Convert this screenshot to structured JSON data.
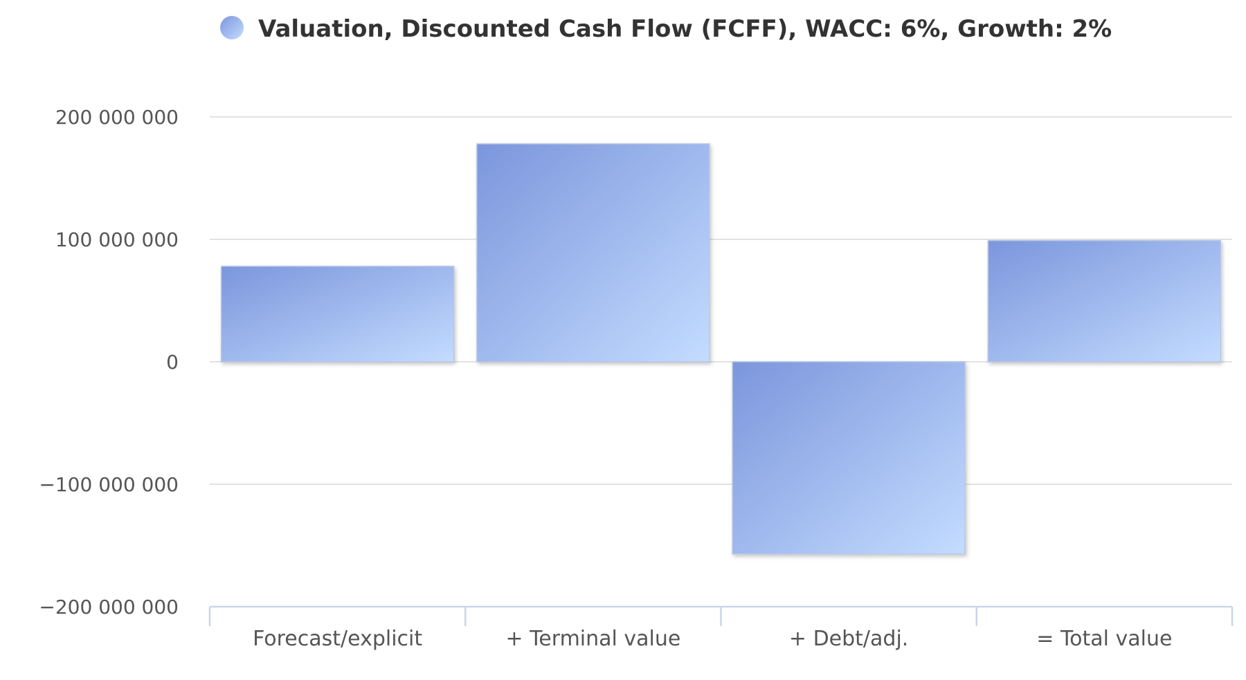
{
  "chart_data": {
    "type": "bar",
    "legend": {
      "label": "Valuation, Discounted Cash Flow (FCFF), WACC: 6%, Growth: 2%",
      "position": "top-center"
    },
    "categories": [
      "Forecast/explicit",
      "+ Terminal value",
      "+ Debt/adj.",
      "= Total value"
    ],
    "series": [
      {
        "name": "Valuation, Discounted Cash Flow (FCFF), WACC: 6%, Growth: 2%",
        "values": [
          78000000,
          178000000,
          -157000000,
          99000000
        ]
      }
    ],
    "ylim": [
      -200000000,
      200000000
    ],
    "yticks": [
      200000000,
      100000000,
      0,
      -100000000,
      -200000000
    ],
    "ytick_labels": [
      "200 000 000",
      "100 000 000",
      "0",
      "−100 000 000",
      "−200 000 000"
    ],
    "grid": true,
    "colors": {
      "bar_dark": "#7b96dc",
      "bar_light": "#c4dcff",
      "grid": "#e2e2e2",
      "axis": "#c9d6ea"
    }
  }
}
